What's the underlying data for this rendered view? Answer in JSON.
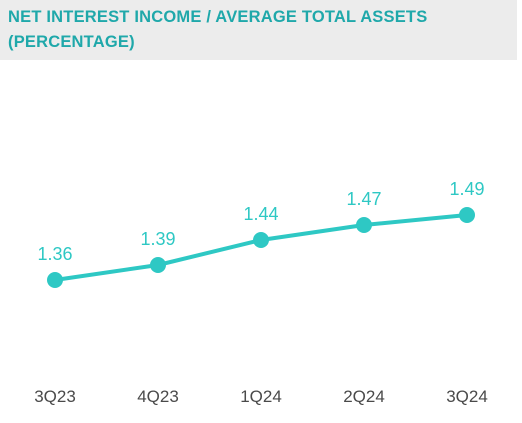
{
  "chart_data": {
    "type": "line",
    "title": "NET INTEREST INCOME / AVERAGE TOTAL ASSETS",
    "subtitle": "(PERCENTAGE)",
    "categories": [
      "3Q23",
      "4Q23",
      "1Q24",
      "2Q24",
      "3Q24"
    ],
    "values": [
      1.36,
      1.39,
      1.44,
      1.47,
      1.49
    ],
    "data_labels": [
      "1.36",
      "1.39",
      "1.44",
      "1.47",
      "1.49"
    ],
    "xlabel": "",
    "ylabel": "",
    "ylim": [
      1.0,
      1.8
    ],
    "grid": false,
    "legend": "none",
    "colors": {
      "line": "#2ec8c4",
      "title": "#1fa8aa",
      "title_band": "#ececec",
      "tick_text": "#4a4a4a"
    }
  }
}
